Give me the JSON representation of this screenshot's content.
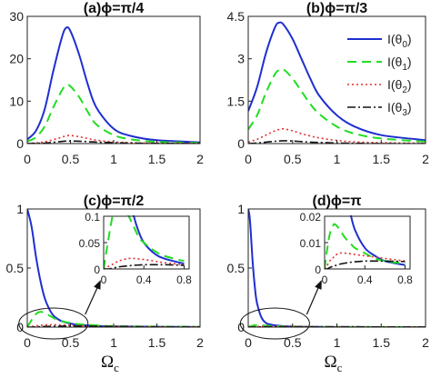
{
  "colors": {
    "theta0": "#1f2fd0",
    "theta1": "#22dd22",
    "theta2": "#e03030",
    "theta3": "#111111",
    "axes": "#222222"
  },
  "xaxis_label": {
    "main": "Ω",
    "sub": "c"
  },
  "legend_labels": {
    "theta0": {
      "prefix": "I(θ",
      "sub": "0",
      "suffix": ")"
    },
    "theta1": {
      "prefix": "I(θ",
      "sub": "1",
      "suffix": ")"
    },
    "theta2": {
      "prefix": "I(θ",
      "sub": "2",
      "suffix": ")"
    },
    "theta3": {
      "prefix": "I(θ",
      "sub": "3",
      "suffix": ")"
    }
  },
  "chart_data": [
    {
      "type": "line",
      "title": "(a)ϕ=π/4",
      "xlim": [
        0,
        2
      ],
      "ylim": [
        0,
        30
      ],
      "xticks": [
        "0",
        "0.5",
        "1",
        "1.5",
        "2"
      ],
      "yticks": [
        "0",
        "10",
        "20",
        "30"
      ],
      "x": [
        0,
        0.1,
        0.2,
        0.3,
        0.4,
        0.45,
        0.5,
        0.6,
        0.7,
        0.8,
        1.0,
        1.2,
        1.5,
        2.0
      ],
      "series": [
        {
          "key": "theta0",
          "values": [
            1.0,
            3.0,
            8.0,
            17.0,
            25.0,
            27.3,
            26.5,
            21.0,
            14.0,
            8.5,
            3.5,
            1.8,
            0.8,
            0.3
          ]
        },
        {
          "key": "theta1",
          "values": [
            0.5,
            1.5,
            4.0,
            8.5,
            12.5,
            13.8,
            13.5,
            11.0,
            7.5,
            4.5,
            2.0,
            1.0,
            0.4,
            0.15
          ]
        },
        {
          "key": "theta2",
          "values": [
            0.05,
            0.15,
            0.4,
            0.9,
            1.5,
            1.8,
            1.9,
            1.6,
            1.2,
            0.8,
            0.4,
            0.2,
            0.1,
            0.05
          ]
        },
        {
          "key": "theta3",
          "values": [
            0.0,
            0.05,
            0.1,
            0.3,
            0.5,
            0.6,
            0.6,
            0.55,
            0.45,
            0.35,
            0.2,
            0.1,
            0.05,
            0.02
          ]
        }
      ]
    },
    {
      "type": "line",
      "title": "(b)ϕ=π/3",
      "xlim": [
        0,
        2
      ],
      "ylim": [
        0,
        4.5
      ],
      "xticks": [
        "0",
        "0.5",
        "1",
        "1.5",
        "2"
      ],
      "yticks": [
        "0",
        "1.5",
        "3",
        "4.5"
      ],
      "x": [
        0,
        0.1,
        0.2,
        0.3,
        0.35,
        0.4,
        0.5,
        0.6,
        0.7,
        0.8,
        1.0,
        1.2,
        1.5,
        2.0
      ],
      "series": [
        {
          "key": "theta0",
          "values": [
            1.15,
            2.0,
            3.2,
            4.1,
            4.28,
            4.2,
            3.7,
            3.0,
            2.3,
            1.7,
            1.0,
            0.6,
            0.3,
            0.12
          ]
        },
        {
          "key": "theta1",
          "values": [
            0.5,
            1.0,
            1.8,
            2.45,
            2.6,
            2.62,
            2.3,
            1.85,
            1.4,
            1.05,
            0.6,
            0.35,
            0.18,
            0.07
          ]
        },
        {
          "key": "theta2",
          "values": [
            0.05,
            0.15,
            0.3,
            0.45,
            0.5,
            0.52,
            0.45,
            0.35,
            0.27,
            0.2,
            0.11,
            0.06,
            0.03,
            0.01
          ]
        },
        {
          "key": "theta3",
          "values": [
            0.0,
            0.02,
            0.05,
            0.08,
            0.09,
            0.1,
            0.09,
            0.07,
            0.05,
            0.04,
            0.02,
            0.01,
            0.0,
            0.0
          ]
        }
      ],
      "legend_position": "top-right"
    },
    {
      "type": "line",
      "title": "(c)ϕ=π/2",
      "xlim": [
        0,
        2
      ],
      "ylim": [
        0,
        1
      ],
      "xticks": [
        "0",
        "0.5",
        "1",
        "1.5",
        "2"
      ],
      "yticks": [
        "0",
        "0.5",
        "1"
      ],
      "x": [
        0,
        0.05,
        0.1,
        0.15,
        0.2,
        0.25,
        0.3,
        0.35,
        0.4,
        0.5,
        0.6,
        0.8,
        1.0,
        1.5,
        2.0
      ],
      "series": [
        {
          "key": "theta0",
          "values": [
            1.0,
            0.85,
            0.6,
            0.4,
            0.25,
            0.16,
            0.1,
            0.07,
            0.05,
            0.03,
            0.02,
            0.01,
            0.006,
            0.003,
            0.001
          ]
        },
        {
          "key": "theta1",
          "values": [
            0.0,
            0.06,
            0.11,
            0.13,
            0.12,
            0.1,
            0.08,
            0.06,
            0.05,
            0.035,
            0.025,
            0.015,
            0.008,
            0.004,
            0.002
          ]
        },
        {
          "key": "theta2",
          "values": [
            0.0,
            0.005,
            0.01,
            0.015,
            0.018,
            0.02,
            0.02,
            0.019,
            0.018,
            0.015,
            0.012,
            0.008,
            0.005,
            0.002,
            0.001
          ]
        },
        {
          "key": "theta3",
          "values": [
            0.0,
            0.0,
            0.002,
            0.004,
            0.005,
            0.006,
            0.007,
            0.0075,
            0.008,
            0.008,
            0.008,
            0.007,
            0.006,
            0.003,
            0.002
          ]
        }
      ],
      "inset": {
        "xlim": [
          0,
          0.85
        ],
        "ylim": [
          0,
          0.1
        ],
        "xticks": [
          "0",
          "0.4",
          "0.8"
        ],
        "yticks": [
          "0",
          "0.05",
          "0.1"
        ]
      }
    },
    {
      "type": "line",
      "title": "(d)ϕ=π",
      "xlim": [
        0,
        2
      ],
      "ylim": [
        0,
        1
      ],
      "xticks": [
        "0",
        "0.5",
        "1",
        "1.5",
        "2"
      ],
      "yticks": [
        "0",
        "0.5",
        "1"
      ],
      "x": [
        0,
        0.02,
        0.05,
        0.08,
        0.1,
        0.15,
        0.2,
        0.25,
        0.3,
        0.4,
        0.5,
        0.6,
        0.8,
        1.0,
        1.5,
        2.0
      ],
      "series": [
        {
          "key": "theta0",
          "values": [
            1.0,
            0.9,
            0.55,
            0.3,
            0.2,
            0.08,
            0.035,
            0.022,
            0.015,
            0.008,
            0.005,
            0.003,
            0.0015,
            0.001,
            0.0005,
            0.0002
          ]
        },
        {
          "key": "theta1",
          "values": [
            0.0,
            0.006,
            0.013,
            0.016,
            0.017,
            0.015,
            0.012,
            0.01,
            0.008,
            0.006,
            0.004,
            0.003,
            0.002,
            0.0015,
            0.0008,
            0.0004
          ]
        },
        {
          "key": "theta2",
          "values": [
            0.0,
            0.001,
            0.003,
            0.004,
            0.005,
            0.006,
            0.006,
            0.0058,
            0.0055,
            0.005,
            0.0045,
            0.004,
            0.003,
            0.002,
            0.001,
            0.0005
          ]
        },
        {
          "key": "theta3",
          "values": [
            0.0,
            0.0,
            0.0005,
            0.001,
            0.0012,
            0.0018,
            0.0022,
            0.0025,
            0.0027,
            0.003,
            0.003,
            0.003,
            0.0028,
            0.0025,
            0.0015,
            0.001
          ]
        }
      ],
      "inset": {
        "xlim": [
          0,
          0.85
        ],
        "ylim": [
          0,
          0.02
        ],
        "xticks": [
          "0",
          "0.4",
          "0.8"
        ],
        "yticks": [
          "0",
          "0.01",
          "0.02"
        ]
      }
    }
  ]
}
